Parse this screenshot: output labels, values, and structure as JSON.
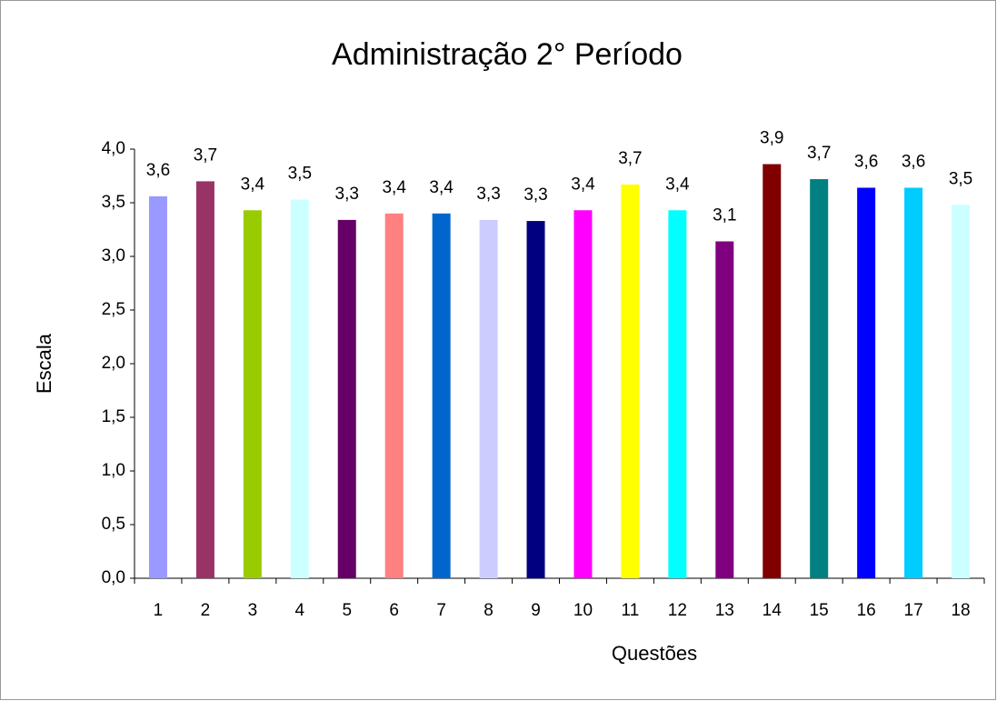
{
  "chart_data": {
    "type": "bar",
    "title": "Administração 2° Período",
    "x_label": "Questões",
    "y_label": "Escala",
    "categories": [
      "1",
      "2",
      "3",
      "4",
      "5",
      "6",
      "7",
      "8",
      "9",
      "10",
      "11",
      "12",
      "13",
      "14",
      "15",
      "16",
      "17",
      "18"
    ],
    "values": [
      3.56,
      3.7,
      3.43,
      3.53,
      3.34,
      3.4,
      3.4,
      3.34,
      3.33,
      3.43,
      3.67,
      3.43,
      3.14,
      3.86,
      3.72,
      3.64,
      3.64,
      3.48
    ],
    "value_labels": [
      "3,6",
      "3,7",
      "3,4",
      "3,5",
      "3,3",
      "3,4",
      "3,4",
      "3,3",
      "3,3",
      "3,4",
      "3,7",
      "3,4",
      "3,1",
      "3,9",
      "3,7",
      "3,6",
      "3,6",
      "3,5"
    ],
    "colors": [
      "#9999ff",
      "#993366",
      "#99cc00",
      "#ccffff",
      "#660066",
      "#ff8080",
      "#0066cc",
      "#ccccff",
      "#000080",
      "#ff00ff",
      "#ffff00",
      "#00ffff",
      "#800080",
      "#800000",
      "#008080",
      "#0000ff",
      "#00ccff",
      "#ccffff"
    ],
    "ylim": [
      0,
      4
    ],
    "yticks": [
      {
        "value": 0,
        "label": "0,0"
      },
      {
        "value": 0.5,
        "label": "0,5"
      },
      {
        "value": 1,
        "label": "1,0"
      },
      {
        "value": 1.5,
        "label": "1,5"
      },
      {
        "value": 2,
        "label": "2,0"
      },
      {
        "value": 2.5,
        "label": "2,5"
      },
      {
        "value": 3,
        "label": "3,0"
      },
      {
        "value": 3.5,
        "label": "3,5"
      },
      {
        "value": 4,
        "label": "4,0"
      }
    ],
    "grid": false
  }
}
